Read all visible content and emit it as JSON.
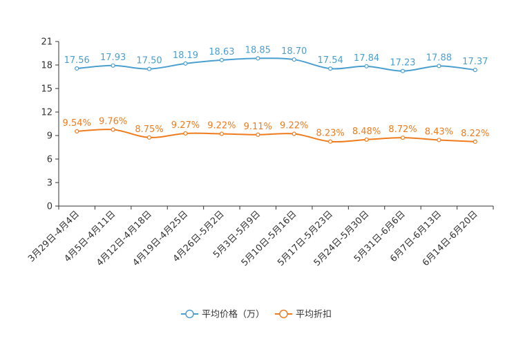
{
  "chart_data": {
    "type": "line",
    "categories": [
      "3月29日-4月4日",
      "4月5日-4月11日",
      "4月12日-4月18日",
      "4月19日-4月25日",
      "4月26日-5月2日",
      "5月3日-5月9日",
      "5月10日-5月16日",
      "5月17日-5月23日",
      "5月24日-5月30日",
      "5月31日-6月6日",
      "6月7日-6月13日",
      "6月14日-6月20日"
    ],
    "ylim": [
      0,
      21
    ],
    "yticks": [
      "0",
      "3",
      "6",
      "9",
      "12",
      "15",
      "18",
      "21"
    ],
    "series": [
      {
        "name": "平均价格（万）",
        "color": "#4a9fd0",
        "values": [
          17.56,
          17.93,
          17.5,
          18.19,
          18.63,
          18.85,
          18.7,
          17.54,
          17.84,
          17.23,
          17.88,
          17.37
        ],
        "labels": [
          "17.56",
          "17.93",
          "17.50",
          "18.19",
          "18.63",
          "18.85",
          "18.70",
          "17.54",
          "17.84",
          "17.23",
          "17.88",
          "17.37"
        ]
      },
      {
        "name": "平均折扣",
        "color": "#f07b1d",
        "values": [
          9.54,
          9.76,
          8.75,
          9.27,
          9.22,
          9.11,
          9.22,
          8.23,
          8.48,
          8.72,
          8.43,
          8.22
        ],
        "labels": [
          "9.54%",
          "9.76%",
          "8.75%",
          "9.27%",
          "9.22%",
          "9.11%",
          "9.22%",
          "8.23%",
          "8.48%",
          "8.72%",
          "8.43%",
          "8.22%"
        ]
      }
    ]
  }
}
